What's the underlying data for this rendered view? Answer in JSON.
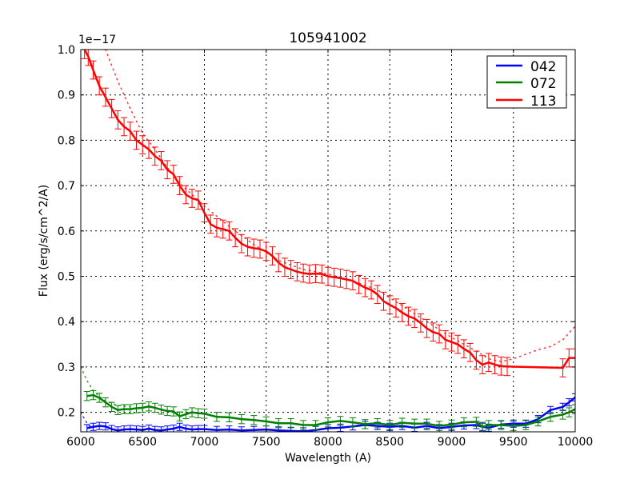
{
  "chart_data": {
    "type": "line",
    "title": "105941002",
    "xlabel": "Wavelength (A)",
    "ylabel": "Flux (erg/s/cm^2/A)",
    "y_offset_label": "1e−17",
    "xlim": [
      6000,
      10000
    ],
    "ylim": [
      0.157,
      1.0
    ],
    "xticks": [
      6000,
      6500,
      7000,
      7500,
      8000,
      8500,
      9000,
      9500,
      10000
    ],
    "xtick_labels": [
      "6000",
      "6500",
      "7000",
      "7500",
      "8000",
      "8500",
      "9000",
      "9500",
      "10000"
    ],
    "yticks": [
      0.2,
      0.3,
      0.4,
      0.5,
      0.6,
      0.7,
      0.8,
      0.9,
      1.0
    ],
    "ytick_labels": [
      "0.2",
      "0.3",
      "0.4",
      "0.5",
      "0.6",
      "0.7",
      "0.8",
      "0.9",
      "1.0"
    ],
    "grid": true,
    "legend_position": "upper right",
    "series": [
      {
        "name": "042",
        "color": "#0000ff",
        "x": [
          6050,
          6100,
          6150,
          6200,
          6250,
          6300,
          6350,
          6400,
          6450,
          6500,
          6550,
          6600,
          6650,
          6700,
          6750,
          6800,
          6850,
          6900,
          6950,
          7000,
          7100,
          7200,
          7300,
          7400,
          7500,
          7600,
          7700,
          7800,
          7900,
          8000,
          8100,
          8200,
          8300,
          8400,
          8500,
          8600,
          8700,
          8800,
          8900,
          9000,
          9100,
          9200,
          9250,
          9300,
          9400,
          9500,
          9600,
          9700,
          9800,
          9900,
          9950,
          10000
        ],
        "y": [
          0.165,
          0.168,
          0.17,
          0.169,
          0.163,
          0.16,
          0.162,
          0.163,
          0.162,
          0.161,
          0.164,
          0.161,
          0.16,
          0.162,
          0.164,
          0.168,
          0.164,
          0.162,
          0.163,
          0.163,
          0.161,
          0.162,
          0.16,
          0.161,
          0.162,
          0.16,
          0.159,
          0.158,
          0.161,
          0.165,
          0.166,
          0.169,
          0.172,
          0.17,
          0.168,
          0.17,
          0.166,
          0.17,
          0.165,
          0.168,
          0.171,
          0.172,
          0.168,
          0.166,
          0.173,
          0.175,
          0.175,
          0.185,
          0.205,
          0.212,
          0.222,
          0.233
        ],
        "yerr": 0.008,
        "model_x": [
          6000,
          6030,
          6060,
          6100
        ],
        "model_y": [
          0.2,
          0.185,
          0.172,
          0.165
        ]
      },
      {
        "name": "072",
        "color": "#008000",
        "x": [
          6050,
          6100,
          6150,
          6200,
          6250,
          6300,
          6350,
          6400,
          6450,
          6500,
          6550,
          6600,
          6650,
          6700,
          6750,
          6800,
          6850,
          6900,
          6950,
          7000,
          7100,
          7200,
          7300,
          7400,
          7500,
          7600,
          7700,
          7800,
          7900,
          8000,
          8100,
          8200,
          8300,
          8400,
          8500,
          8600,
          8700,
          8800,
          8900,
          9000,
          9100,
          9200,
          9250,
          9300,
          9400,
          9500,
          9600,
          9700,
          9800,
          9900,
          9950,
          10000
        ],
        "y": [
          0.236,
          0.238,
          0.232,
          0.222,
          0.212,
          0.205,
          0.207,
          0.207,
          0.209,
          0.21,
          0.213,
          0.21,
          0.206,
          0.203,
          0.202,
          0.191,
          0.196,
          0.2,
          0.198,
          0.197,
          0.19,
          0.189,
          0.185,
          0.183,
          0.18,
          0.176,
          0.176,
          0.172,
          0.172,
          0.178,
          0.181,
          0.178,
          0.174,
          0.176,
          0.172,
          0.177,
          0.175,
          0.175,
          0.17,
          0.173,
          0.178,
          0.179,
          0.168,
          0.172,
          0.172,
          0.17,
          0.172,
          0.18,
          0.19,
          0.195,
          0.2,
          0.207
        ],
        "yerr": 0.01,
        "model_x": [
          6000,
          6050,
          6100,
          6150,
          6200,
          6300,
          6400
        ],
        "model_y": [
          0.3,
          0.27,
          0.248,
          0.235,
          0.225,
          0.215,
          0.212
        ]
      },
      {
        "name": "113",
        "color": "#ff0000",
        "x": [
          6030,
          6060,
          6100,
          6150,
          6200,
          6250,
          6300,
          6350,
          6400,
          6450,
          6500,
          6550,
          6600,
          6650,
          6700,
          6750,
          6800,
          6850,
          6900,
          6950,
          7000,
          7050,
          7100,
          7150,
          7200,
          7250,
          7300,
          7350,
          7400,
          7450,
          7500,
          7550,
          7600,
          7650,
          7700,
          7750,
          7800,
          7850,
          7900,
          7950,
          8000,
          8050,
          8100,
          8150,
          8200,
          8250,
          8300,
          8350,
          8400,
          8450,
          8500,
          8550,
          8600,
          8650,
          8700,
          8750,
          8800,
          8850,
          8900,
          8950,
          9000,
          9050,
          9100,
          9150,
          9200,
          9250,
          9300,
          9350,
          9400,
          9450,
          9900,
          9950,
          10000
        ],
        "y": [
          1.0,
          0.985,
          0.955,
          0.92,
          0.895,
          0.87,
          0.845,
          0.83,
          0.82,
          0.8,
          0.79,
          0.78,
          0.765,
          0.755,
          0.735,
          0.725,
          0.7,
          0.68,
          0.672,
          0.668,
          0.64,
          0.615,
          0.607,
          0.604,
          0.6,
          0.585,
          0.572,
          0.565,
          0.562,
          0.56,
          0.555,
          0.545,
          0.53,
          0.52,
          0.515,
          0.51,
          0.507,
          0.505,
          0.506,
          0.505,
          0.5,
          0.498,
          0.496,
          0.493,
          0.49,
          0.482,
          0.475,
          0.47,
          0.46,
          0.445,
          0.437,
          0.43,
          0.42,
          0.412,
          0.407,
          0.397,
          0.385,
          0.377,
          0.373,
          0.36,
          0.355,
          0.35,
          0.34,
          0.332,
          0.315,
          0.305,
          0.31,
          0.305,
          0.302,
          0.301,
          0.298,
          0.32,
          0.32
        ],
        "yerr": 0.02,
        "model_x": [
          6200,
          6300,
          6400,
          6500,
          6600,
          6700,
          6800,
          6900,
          7000,
          7200,
          7400,
          7600,
          7800,
          8000,
          8200,
          8400,
          8600,
          8800,
          9000,
          9200,
          9300,
          9400,
          9500,
          9600,
          9700,
          9800,
          9900,
          10000
        ],
        "model_y": [
          1.0,
          0.93,
          0.87,
          0.815,
          0.78,
          0.74,
          0.705,
          0.68,
          0.655,
          0.61,
          0.57,
          0.535,
          0.515,
          0.505,
          0.49,
          0.47,
          0.435,
          0.4,
          0.365,
          0.335,
          0.318,
          0.312,
          0.318,
          0.328,
          0.338,
          0.345,
          0.36,
          0.39
        ]
      }
    ]
  },
  "legend": {
    "items": [
      {
        "label": "042",
        "color": "#0000ff"
      },
      {
        "label": "072",
        "color": "#008000"
      },
      {
        "label": "113",
        "color": "#ff0000"
      }
    ]
  }
}
